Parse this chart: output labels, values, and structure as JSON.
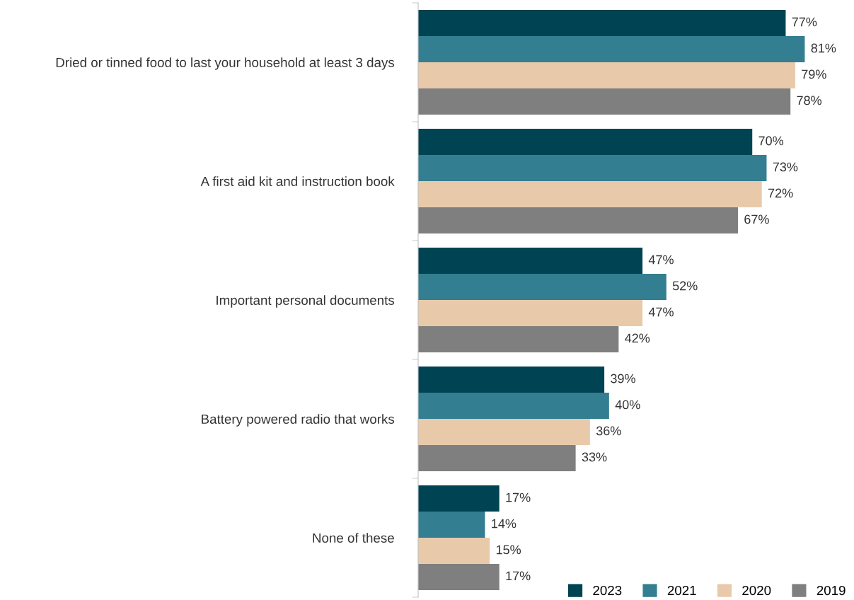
{
  "chart_data": {
    "type": "bar",
    "orientation": "horizontal",
    "categories": [
      "Dried or tinned food to last your household at least 3 days",
      "A first aid kit and instruction book",
      "Important personal documents",
      "Battery powered radio that works",
      "None of these"
    ],
    "series": [
      {
        "name": "2023",
        "color": "#004453",
        "values": [
          77,
          70,
          47,
          39,
          17
        ],
        "value_labels": [
          "77%",
          "70%",
          "47%",
          "39%",
          "17%"
        ]
      },
      {
        "name": "2021",
        "color": "#337e91",
        "values": [
          81,
          73,
          52,
          40,
          14
        ],
        "value_labels": [
          "81%",
          "73%",
          "52%",
          "40%",
          "14%"
        ]
      },
      {
        "name": "2020",
        "color": "#e8caab",
        "values": [
          79,
          72,
          47,
          36,
          15
        ],
        "value_labels": [
          "79%",
          "72%",
          "47%",
          "36%",
          "15%"
        ]
      },
      {
        "name": "2019",
        "color": "#7f7f7f",
        "values": [
          78,
          67,
          42,
          33,
          17
        ],
        "value_labels": [
          "78%",
          "67%",
          "42%",
          "33%",
          "17%"
        ]
      }
    ],
    "legend": "bottom right",
    "tick_labels": "y"
  }
}
